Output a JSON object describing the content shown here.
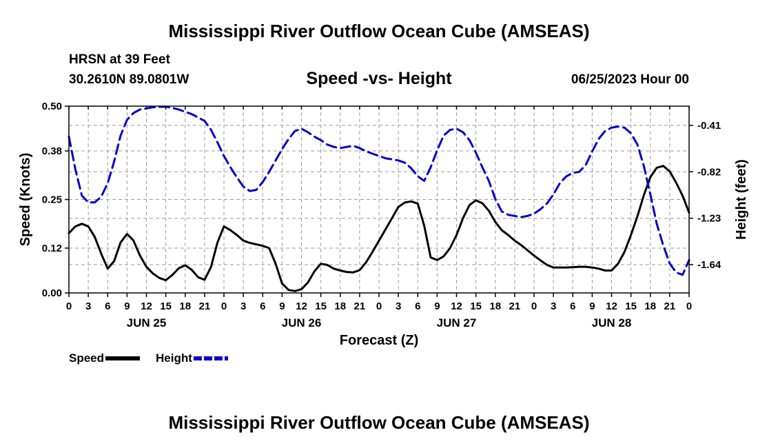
{
  "page": {
    "title": "Mississippi River Outflow Ocean Cube (AMSEAS)",
    "bottom_title": "Mississippi River Outflow Ocean Cube (AMSEAS)",
    "station": "HRSN at 39 Feet",
    "coordinates": "30.2610N  89.0801W",
    "date": "06/25/2023 Hour 00"
  },
  "chart_data": {
    "type": "line",
    "title": "Speed -vs- Height",
    "xlabel": "Forecast (Z)",
    "ylabel": "Speed (Knots)",
    "y2label": "Height (feet)",
    "xlim": [
      0,
      96
    ],
    "ylim": [
      0,
      0.5
    ],
    "y2lim": [
      -1.89,
      -0.24
    ],
    "grid": true,
    "x_ticks": [
      0,
      3,
      6,
      9,
      12,
      15,
      18,
      21,
      24,
      27,
      30,
      33,
      36,
      39,
      42,
      45,
      48,
      51,
      54,
      57,
      60,
      63,
      66,
      69,
      72,
      75,
      78,
      81,
      84,
      87,
      90,
      93,
      96
    ],
    "x_tick_labels": [
      "0",
      "3",
      "6",
      "9",
      "12",
      "15",
      "18",
      "21",
      "0",
      "3",
      "6",
      "9",
      "12",
      "15",
      "18",
      "21",
      "0",
      "3",
      "6",
      "9",
      "12",
      "15",
      "18",
      "21",
      "0",
      "3",
      "6",
      "9",
      "12",
      "15",
      "18",
      "21",
      "0"
    ],
    "day_labels": [
      {
        "x": 12,
        "label": "JUN 25"
      },
      {
        "x": 36,
        "label": "JUN 26"
      },
      {
        "x": 60,
        "label": "JUN 27"
      },
      {
        "x": 84,
        "label": "JUN 28"
      }
    ],
    "y_ticks": [
      0,
      0.12,
      0.25,
      0.38,
      0.5
    ],
    "y_tick_labels": [
      "0.00",
      "0.12",
      "0.25",
      "0.38",
      "0.50"
    ],
    "y2_ticks": [
      -1.64,
      -1.23,
      -0.82,
      -0.41
    ],
    "y2_tick_labels": [
      "-1.64",
      "-1.23",
      "-0.82",
      "-0.41"
    ],
    "legend": [
      {
        "name": "Speed",
        "color": "#000000",
        "dash": "solid"
      },
      {
        "name": "Height",
        "color": "#0000cc",
        "dash": "dashed"
      }
    ],
    "series": [
      {
        "name": "Speed",
        "axis": "left",
        "color": "#000000",
        "x": [
          0,
          1,
          2,
          3,
          4,
          5,
          6,
          7,
          8,
          9,
          10,
          11,
          12,
          13,
          14,
          15,
          16,
          17,
          18,
          19,
          20,
          21,
          22,
          23,
          24,
          25,
          26,
          27,
          28,
          29,
          30,
          31,
          32,
          33,
          34,
          35,
          36,
          37,
          38,
          39,
          40,
          41,
          42,
          43,
          44,
          45,
          46,
          47,
          48,
          49,
          50,
          51,
          52,
          53,
          54,
          55,
          56,
          57,
          58,
          59,
          60,
          61,
          62,
          63,
          64,
          65,
          66,
          67,
          68,
          69,
          70,
          71,
          72,
          73,
          74,
          75,
          76,
          77,
          78,
          79,
          80,
          81,
          82,
          83,
          84,
          85,
          86,
          87,
          88,
          89,
          90,
          91,
          92,
          93,
          94,
          95,
          96
        ],
        "values": [
          0.16,
          0.178,
          0.185,
          0.178,
          0.15,
          0.105,
          0.065,
          0.085,
          0.135,
          0.158,
          0.14,
          0.1,
          0.07,
          0.052,
          0.04,
          0.034,
          0.048,
          0.066,
          0.074,
          0.062,
          0.042,
          0.035,
          0.07,
          0.135,
          0.178,
          0.168,
          0.155,
          0.14,
          0.134,
          0.13,
          0.126,
          0.12,
          0.078,
          0.025,
          0.008,
          0.005,
          0.01,
          0.028,
          0.058,
          0.078,
          0.075,
          0.065,
          0.06,
          0.056,
          0.055,
          0.061,
          0.082,
          0.11,
          0.14,
          0.17,
          0.2,
          0.23,
          0.242,
          0.245,
          0.239,
          0.18,
          0.095,
          0.088,
          0.098,
          0.12,
          0.155,
          0.2,
          0.235,
          0.248,
          0.24,
          0.22,
          0.19,
          0.168,
          0.155,
          0.14,
          0.128,
          0.114,
          0.1,
          0.087,
          0.075,
          0.068,
          0.068,
          0.068,
          0.069,
          0.07,
          0.07,
          0.068,
          0.065,
          0.06,
          0.06,
          0.078,
          0.11,
          0.155,
          0.205,
          0.262,
          0.31,
          0.335,
          0.34,
          0.325,
          0.295,
          0.26,
          0.215
        ]
      },
      {
        "name": "Height",
        "axis": "right",
        "color": "#0000cc",
        "x": [
          0,
          1,
          2,
          3,
          4,
          5,
          6,
          7,
          8,
          9,
          10,
          11,
          12,
          13,
          14,
          15,
          16,
          17,
          18,
          19,
          20,
          21,
          22,
          23,
          24,
          25,
          26,
          27,
          28,
          29,
          30,
          31,
          32,
          33,
          34,
          35,
          36,
          37,
          38,
          39,
          40,
          41,
          42,
          43,
          44,
          45,
          46,
          47,
          48,
          49,
          50,
          51,
          52,
          53,
          54,
          55,
          56,
          57,
          58,
          59,
          60,
          61,
          62,
          63,
          64,
          65,
          66,
          67,
          68,
          69,
          70,
          71,
          72,
          73,
          74,
          75,
          76,
          77,
          78,
          79,
          80,
          81,
          82,
          83,
          84,
          85,
          86,
          87,
          88,
          89,
          90,
          91,
          92,
          93,
          94,
          95,
          96
        ],
        "values": [
          -0.51,
          -0.8,
          -1.03,
          -1.09,
          -1.09,
          -1.04,
          -0.92,
          -0.73,
          -0.5,
          -0.36,
          -0.3,
          -0.27,
          -0.26,
          -0.25,
          -0.247,
          -0.245,
          -0.255,
          -0.27,
          -0.29,
          -0.31,
          -0.34,
          -0.37,
          -0.45,
          -0.56,
          -0.68,
          -0.78,
          -0.87,
          -0.95,
          -0.99,
          -0.98,
          -0.91,
          -0.82,
          -0.72,
          -0.62,
          -0.53,
          -0.46,
          -0.44,
          -0.47,
          -0.51,
          -0.54,
          -0.58,
          -0.6,
          -0.61,
          -0.6,
          -0.59,
          -0.61,
          -0.64,
          -0.66,
          -0.68,
          -0.7,
          -0.71,
          -0.72,
          -0.74,
          -0.79,
          -0.86,
          -0.9,
          -0.78,
          -0.63,
          -0.5,
          -0.45,
          -0.44,
          -0.47,
          -0.54,
          -0.65,
          -0.78,
          -0.9,
          -1.06,
          -1.17,
          -1.2,
          -1.21,
          -1.22,
          -1.21,
          -1.19,
          -1.15,
          -1.1,
          -1.02,
          -0.92,
          -0.86,
          -0.83,
          -0.82,
          -0.76,
          -0.64,
          -0.53,
          -0.46,
          -0.43,
          -0.42,
          -0.43,
          -0.48,
          -0.58,
          -0.77,
          -1.02,
          -1.28,
          -1.47,
          -1.63,
          -1.71,
          -1.73,
          -1.6
        ]
      }
    ]
  }
}
